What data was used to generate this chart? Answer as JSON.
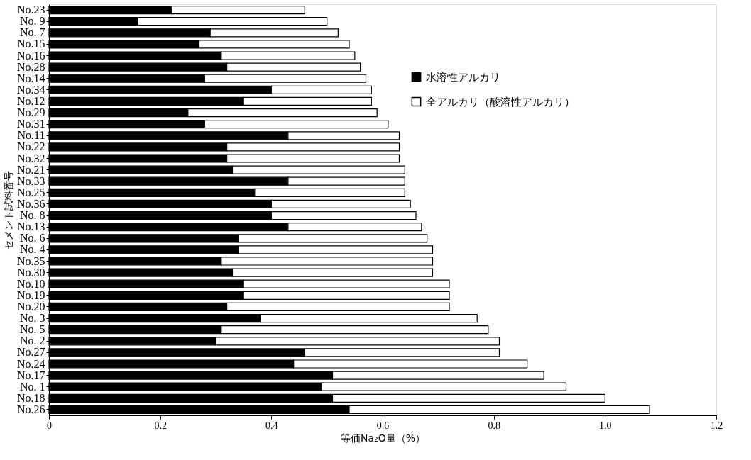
{
  "chart_data": {
    "type": "bar",
    "orientation": "horizontal",
    "stacked": true,
    "xlabel": "等価Na₂O量（%）",
    "ylabel": "セメント試料番号",
    "categories": [
      "No.23",
      "No. 9",
      "No. 7",
      "No.15",
      "No.16",
      "No.28",
      "No.14",
      "No.34",
      "No.12",
      "No.29",
      "No.31",
      "No.11",
      "No.22",
      "No.32",
      "No.21",
      "No.33",
      "No.25",
      "No.36",
      "No. 8",
      "No.13",
      "No. 6",
      "No. 4",
      "No.35",
      "No.30",
      "No.10",
      "No.19",
      "No.20",
      "No. 3",
      "No. 5",
      "No. 2",
      "No.27",
      "No.24",
      "No.17",
      "No. 1",
      "No.18",
      "No.26"
    ],
    "series": [
      {
        "name": "水溶性アルカリ",
        "color": "#000000",
        "values": [
          0.22,
          0.16,
          0.29,
          0.27,
          0.31,
          0.32,
          0.28,
          0.4,
          0.35,
          0.25,
          0.28,
          0.43,
          0.32,
          0.32,
          0.33,
          0.43,
          0.37,
          0.4,
          0.4,
          0.43,
          0.34,
          0.34,
          0.31,
          0.33,
          0.35,
          0.35,
          0.32,
          0.38,
          0.31,
          0.3,
          0.46,
          0.44,
          0.51,
          0.49,
          0.51,
          0.54
        ]
      },
      {
        "name": "全アルカリ（酸溶性アルカリ）",
        "color": "#ffffff",
        "values": [
          0.24,
          0.34,
          0.23,
          0.27,
          0.24,
          0.24,
          0.29,
          0.18,
          0.23,
          0.34,
          0.33,
          0.2,
          0.31,
          0.31,
          0.31,
          0.21,
          0.27,
          0.25,
          0.26,
          0.24,
          0.34,
          0.35,
          0.38,
          0.36,
          0.37,
          0.37,
          0.4,
          0.39,
          0.48,
          0.51,
          0.35,
          0.42,
          0.38,
          0.44,
          0.49,
          0.54
        ]
      }
    ],
    "xlim": [
      0,
      1.2
    ],
    "xticks": [
      0,
      0.2,
      0.4,
      0.6,
      0.8,
      {
        "value": 1,
        "label": "1.0"
      },
      1.2
    ],
    "grid": false,
    "legend": "top right"
  }
}
